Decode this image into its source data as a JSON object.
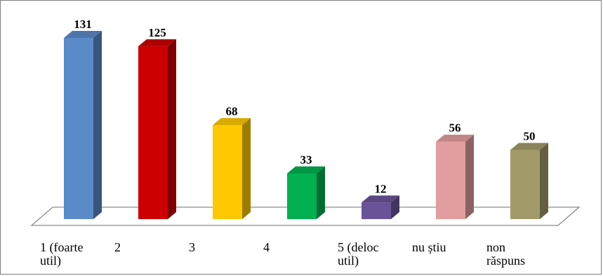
{
  "chart_data": {
    "type": "bar",
    "categories": [
      [
        "1 (foarte",
        "util)"
      ],
      [
        "2"
      ],
      [
        "3"
      ],
      [
        "4"
      ],
      [
        "5 (deloc",
        "util)"
      ],
      [
        "nu știu"
      ],
      [
        "non",
        "răspuns"
      ]
    ],
    "values": [
      131,
      125,
      68,
      33,
      12,
      56,
      50
    ],
    "data_labels": [
      "131",
      "125",
      "68",
      "33",
      "12",
      "56",
      "50"
    ],
    "colors": [
      "#5B8AC8",
      "#CC0000",
      "#FFC800",
      "#00B050",
      "#6A5499",
      "#E29E9E",
      "#A39A6A"
    ],
    "ylim": [
      0,
      140
    ],
    "grid": false,
    "legend": "none",
    "style": "3d-column"
  }
}
